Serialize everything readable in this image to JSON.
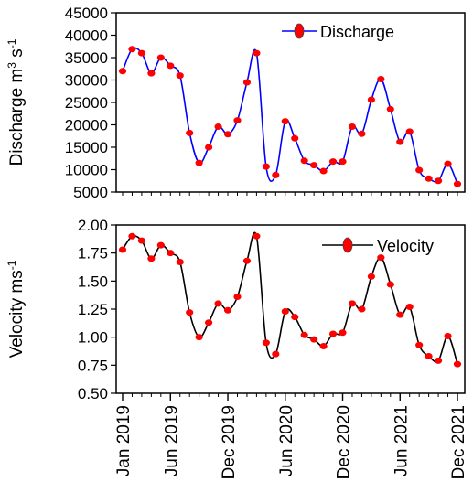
{
  "chart_data": [
    {
      "type": "line",
      "ylabel": "Discharge m3 s-1",
      "ylabel_parts": {
        "base": "Discharge m",
        "sup1": "3",
        "mid": " s",
        "sup2": "-1"
      },
      "ylim": [
        5000,
        45000
      ],
      "yticks": [
        5000,
        10000,
        15000,
        20000,
        25000,
        30000,
        35000,
        40000,
        45000
      ],
      "legend": {
        "label": "Discharge",
        "placement": "top-right"
      },
      "line_color": "#0000ff",
      "marker_color": "#ff0000",
      "series": [
        {
          "name": "Discharge",
          "x": [
            "2019-01",
            "2019-02",
            "2019-03",
            "2019-04",
            "2019-05",
            "2019-06",
            "2019-07",
            "2019-08",
            "2019-09",
            "2019-10",
            "2019-11",
            "2019-12",
            "2020-01",
            "2020-02",
            "2020-03",
            "2020-04",
            "2020-05",
            "2020-06",
            "2020-07",
            "2020-08",
            "2020-09",
            "2020-10",
            "2020-11",
            "2020-12",
            "2021-01",
            "2021-02",
            "2021-03",
            "2021-04",
            "2021-05",
            "2021-06",
            "2021-07",
            "2021-08",
            "2021-09",
            "2021-10",
            "2021-11",
            "2021-12"
          ],
          "values": [
            32000,
            36900,
            36000,
            31500,
            35000,
            33200,
            31000,
            18200,
            11500,
            15000,
            19600,
            17900,
            21000,
            29500,
            36000,
            10700,
            8800,
            20800,
            17000,
            12000,
            11000,
            9700,
            11800,
            11800,
            19600,
            18000,
            25600,
            30200,
            23500,
            16200,
            18500,
            9900,
            8000,
            7500,
            11300,
            6800
          ]
        }
      ]
    },
    {
      "type": "line",
      "ylabel": "Velocity ms-1",
      "ylabel_parts": {
        "base": "Velocity ms",
        "sup1": "",
        "mid": "",
        "sup2": "-1"
      },
      "xlabel": "",
      "ylim": [
        0.5,
        2.0
      ],
      "yticks": [
        0.5,
        0.75,
        1.0,
        1.25,
        1.5,
        1.75,
        2.0
      ],
      "ytick_labels": [
        "0.50",
        "0.75",
        "1.00",
        "1.25",
        "1.50",
        "1.75",
        "2.00"
      ],
      "legend": {
        "label": "Velocity",
        "placement": "top-right"
      },
      "line_color": "#000000",
      "marker_color": "#ff0000",
      "x_tick_labels": [
        "Jan 2019",
        "Jun 2019",
        "Dec 2019",
        "Jun 2020",
        "Dec 2020",
        "Jun 2021",
        "Dec 2021"
      ],
      "series": [
        {
          "name": "Velocity",
          "x": [
            "2019-01",
            "2019-02",
            "2019-03",
            "2019-04",
            "2019-05",
            "2019-06",
            "2019-07",
            "2019-08",
            "2019-09",
            "2019-10",
            "2019-11",
            "2019-12",
            "2020-01",
            "2020-02",
            "2020-03",
            "2020-04",
            "2020-05",
            "2020-06",
            "2020-07",
            "2020-08",
            "2020-09",
            "2020-10",
            "2020-11",
            "2020-12",
            "2021-01",
            "2021-02",
            "2021-03",
            "2021-04",
            "2021-05",
            "2021-06",
            "2021-07",
            "2021-08",
            "2021-09",
            "2021-10",
            "2021-11",
            "2021-12"
          ],
          "values": [
            1.78,
            1.9,
            1.86,
            1.7,
            1.82,
            1.75,
            1.67,
            1.22,
            1.0,
            1.13,
            1.3,
            1.24,
            1.36,
            1.68,
            1.9,
            0.95,
            0.85,
            1.23,
            1.18,
            1.02,
            0.98,
            0.92,
            1.03,
            1.04,
            1.3,
            1.25,
            1.54,
            1.71,
            1.47,
            1.2,
            1.27,
            0.93,
            0.83,
            0.79,
            1.01,
            0.76
          ]
        }
      ]
    }
  ]
}
